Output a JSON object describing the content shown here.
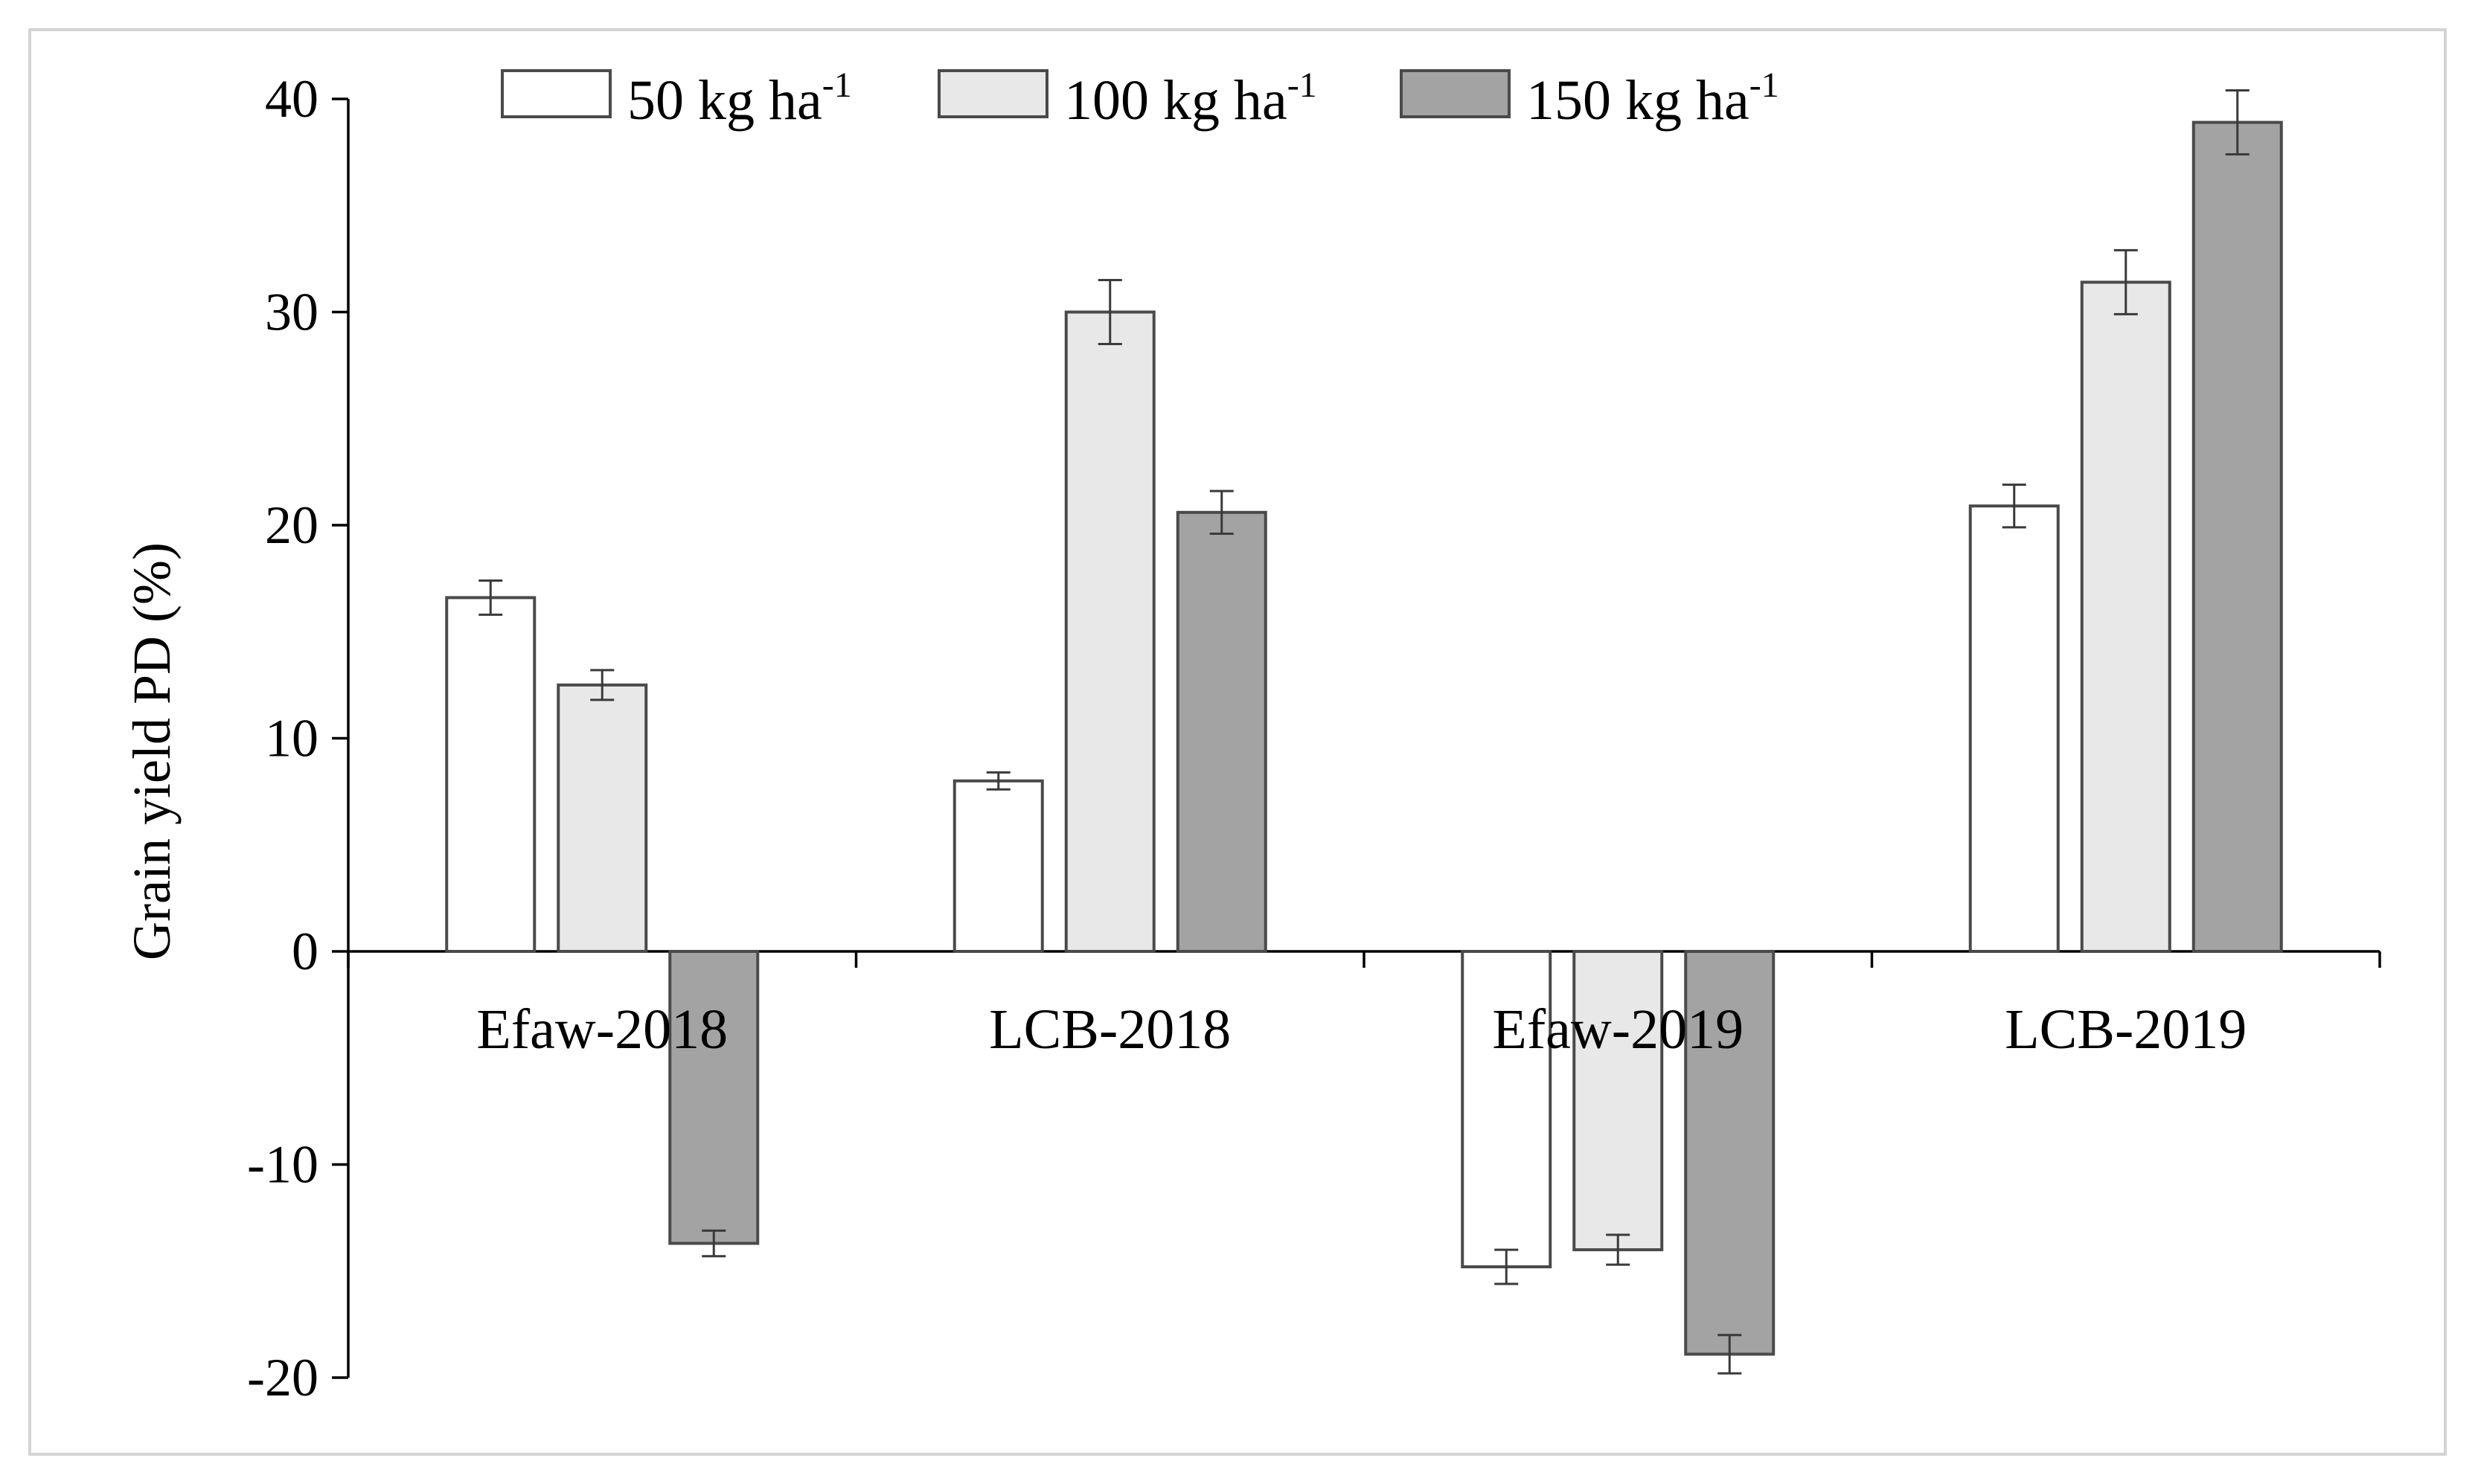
{
  "chart_data": {
    "type": "bar",
    "title": "",
    "xlabel": "",
    "ylabel": "Grain yield PD (%)",
    "ylim": [
      -20,
      40
    ],
    "yticks": [
      40,
      30,
      20,
      10,
      0,
      -10,
      -20
    ],
    "ytick_labels": [
      "40",
      "30",
      "20",
      "10",
      "0",
      "-10",
      "-20"
    ],
    "categories": [
      "Efaw-2018",
      "LCB-2018",
      "Efaw-2019",
      "LCB-2019"
    ],
    "legend_position": "top",
    "series": [
      {
        "name": "50 kg ha-1",
        "label_main": "50 kg ha",
        "label_sup": "-1",
        "color": "#ffffff",
        "values": [
          16.6,
          8.0,
          -14.8,
          20.9
        ],
        "errors": [
          0.8,
          0.4,
          0.8,
          1.0
        ]
      },
      {
        "name": "100 kg ha-1",
        "label_main": "100 kg ha",
        "label_sup": "-1",
        "color": "#e8e8e8",
        "values": [
          12.5,
          30.0,
          -14.0,
          31.4
        ],
        "errors": [
          0.7,
          1.5,
          0.7,
          1.5
        ]
      },
      {
        "name": "150 kg ha-1",
        "label_main": "150 kg ha",
        "label_sup": "-1",
        "color": "#a3a3a3",
        "values": [
          -13.7,
          20.6,
          -18.9,
          38.9
        ],
        "errors": [
          0.6,
          1.0,
          0.9,
          1.5
        ]
      }
    ]
  }
}
